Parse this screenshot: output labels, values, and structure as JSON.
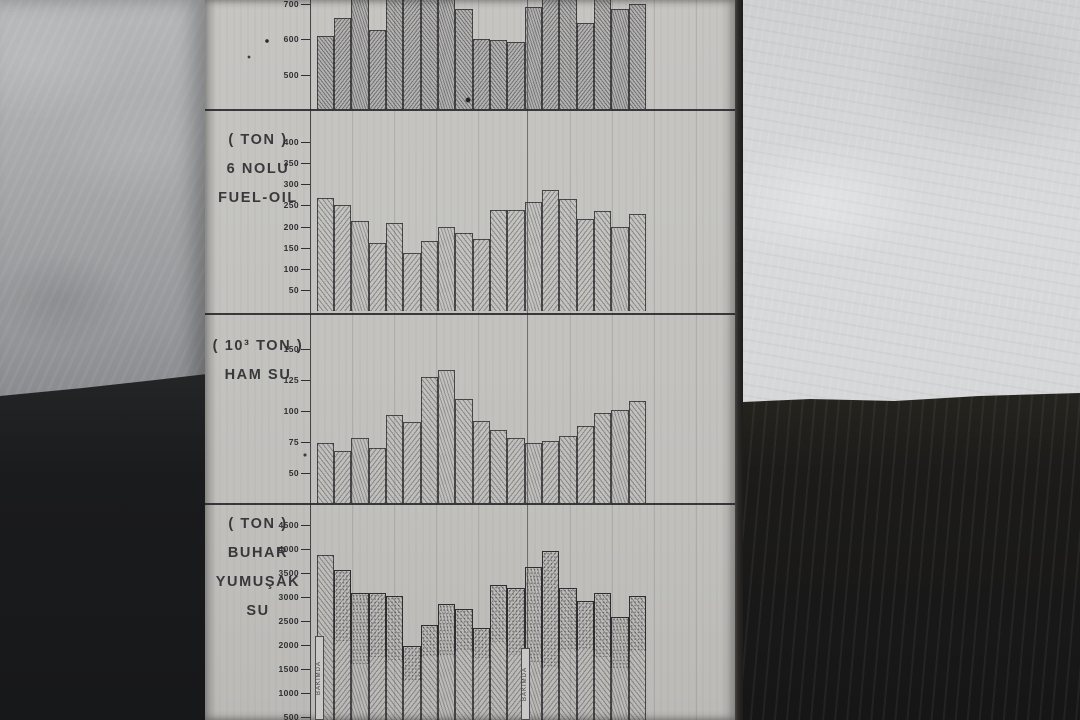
{
  "photo": {
    "description": "photograph of a hand-drawn industrial bar-chart board leaning against a plaster wall",
    "board_color": "#c4c3c0",
    "left_wall_color": "#9a9c9e",
    "right_wall_color": "#d9dadb",
    "floor_color": "#1b1b1d",
    "ink_color": "#2e2f32"
  },
  "board": {
    "section_labels": {
      "chart2": [
        "( TON )",
        "6 NOLU",
        "FUEL-OIL"
      ],
      "chart3": [
        "( 10³ TON )",
        "HAM SU"
      ],
      "chart4": [
        "( TON )",
        "BUHAR",
        "YUMUŞAK",
        "SU"
      ]
    },
    "maintenance_note": "BAKIMDA"
  },
  "chart_data": [
    {
      "type": "bar",
      "title": "topmost chart (name cropped off by photo edge)",
      "unit": "",
      "ytick_labels": [
        700,
        600,
        500
      ],
      "baseline_value": 400,
      "values": [
        608,
        660,
        738,
        625,
        738,
        738,
        738,
        738,
        685,
        600,
        598,
        592,
        690,
        738,
        738,
        645,
        738,
        685,
        700
      ],
      "note": "values of 738 indicate bars that extend past the cropped top edge of the photo; no x-axis labels visible",
      "xlabel": "",
      "ylabel": ""
    },
    {
      "type": "bar",
      "title": "6 NOLU FUEL-OIL",
      "unit": "TON",
      "ytick_labels": [
        400,
        350,
        300,
        250,
        200,
        150,
        100,
        50
      ],
      "ylim": [
        0,
        400
      ],
      "values": [
        268,
        252,
        214,
        160,
        208,
        138,
        166,
        198,
        184,
        170,
        238,
        240,
        257,
        286,
        264,
        217,
        236,
        200,
        229
      ],
      "note": "hand-hatched bars, no x-axis labels visible",
      "xlabel": "",
      "ylabel": "TON"
    },
    {
      "type": "bar",
      "title": "HAM SU",
      "unit": "10³ TON",
      "ytick_labels": [
        150,
        125,
        100,
        75,
        50
      ],
      "ylim": [
        25,
        160
      ],
      "values": [
        74,
        68,
        78,
        70,
        97,
        91,
        127,
        133,
        110,
        92,
        85,
        78,
        74,
        76,
        80,
        88,
        98,
        101,
        108
      ],
      "note": "hand-hatched bars, no x-axis labels visible",
      "xlabel": "",
      "ylabel": "10³ TON"
    },
    {
      "type": "bar",
      "title": "BUHAR YUMUŞAK SU",
      "unit": "TON",
      "stacked": true,
      "ytick_labels": [
        4500,
        4000,
        3500,
        3000,
        2500,
        2000,
        1500,
        1000,
        500
      ],
      "bar_top_values": [
        3875,
        3560,
        3080,
        3080,
        3030,
        1980,
        2420,
        2850,
        2750,
        2350,
        3250,
        3180,
        3630,
        3960,
        3180,
        2920,
        3080,
        2590,
        3030
      ],
      "hatched_segment_top_values": [
        3875,
        2080,
        1600,
        1750,
        1690,
        1270,
        1760,
        1790,
        1870,
        1730,
        2060,
        1790,
        1625,
        1520,
        1900,
        1890,
        1750,
        1520,
        1870
      ],
      "note": "stacked bars: stippled (dotted) upper segment above diagonally hatched lower segment; bar bottoms cropped by the photo's bottom edge; two narrow strips carry vertical text",
      "xlabel": "",
      "ylabel": "TON"
    }
  ]
}
